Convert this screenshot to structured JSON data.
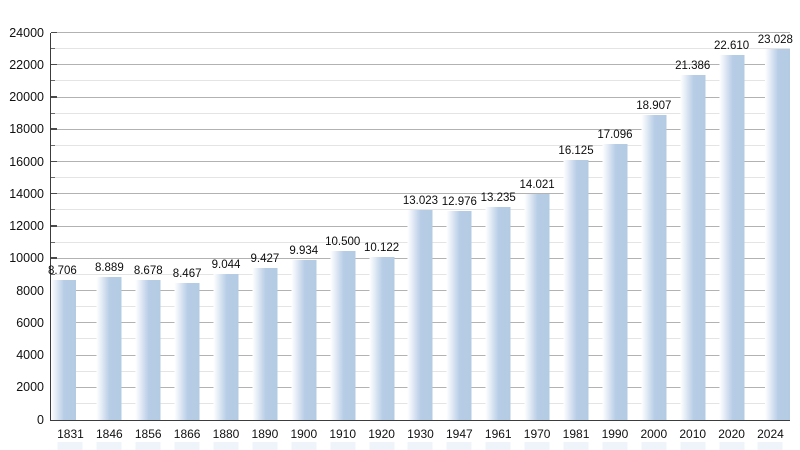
{
  "chart_data": {
    "type": "bar",
    "categories": [
      "1831",
      "1846",
      "1856",
      "1866",
      "1880",
      "1890",
      "1900",
      "1910",
      "1920",
      "1930",
      "1947",
      "1961",
      "1970",
      "1981",
      "1990",
      "2000",
      "2010",
      "2020",
      "2024"
    ],
    "values": [
      8706,
      8889,
      8678,
      8467,
      9044,
      9427,
      9934,
      10500,
      10122,
      13023,
      12976,
      13235,
      14021,
      16125,
      17096,
      18907,
      21386,
      22610,
      23028
    ],
    "value_labels": [
      "8.706",
      "8.889",
      "8.678",
      "8.467",
      "9.044",
      "9.427",
      "9.934",
      "10.500",
      "10.122",
      "13.023",
      "12.976",
      "13.235",
      "14.021",
      "16.125",
      "17.096",
      "18.907",
      "21.386",
      "22.610",
      "23.028"
    ],
    "ylim": [
      0,
      24000
    ],
    "y_major_step": 2000,
    "y_minor_step": 1000,
    "y_tick_labels": [
      "0",
      "2000",
      "4000",
      "6000",
      "8000",
      "10000",
      "12000",
      "14000",
      "16000",
      "18000",
      "20000",
      "22000",
      "24000"
    ],
    "grid": true,
    "legend": "none",
    "colors": {
      "bar_fill": "#b7cde6",
      "bar_gradient_start": "#ffffff",
      "grid_major": "#b2b2b2",
      "grid_minor": "#e4e4e4",
      "axis": "#3c3c3c",
      "text": "#111111",
      "ghost_fill": "#eff4fa"
    }
  }
}
